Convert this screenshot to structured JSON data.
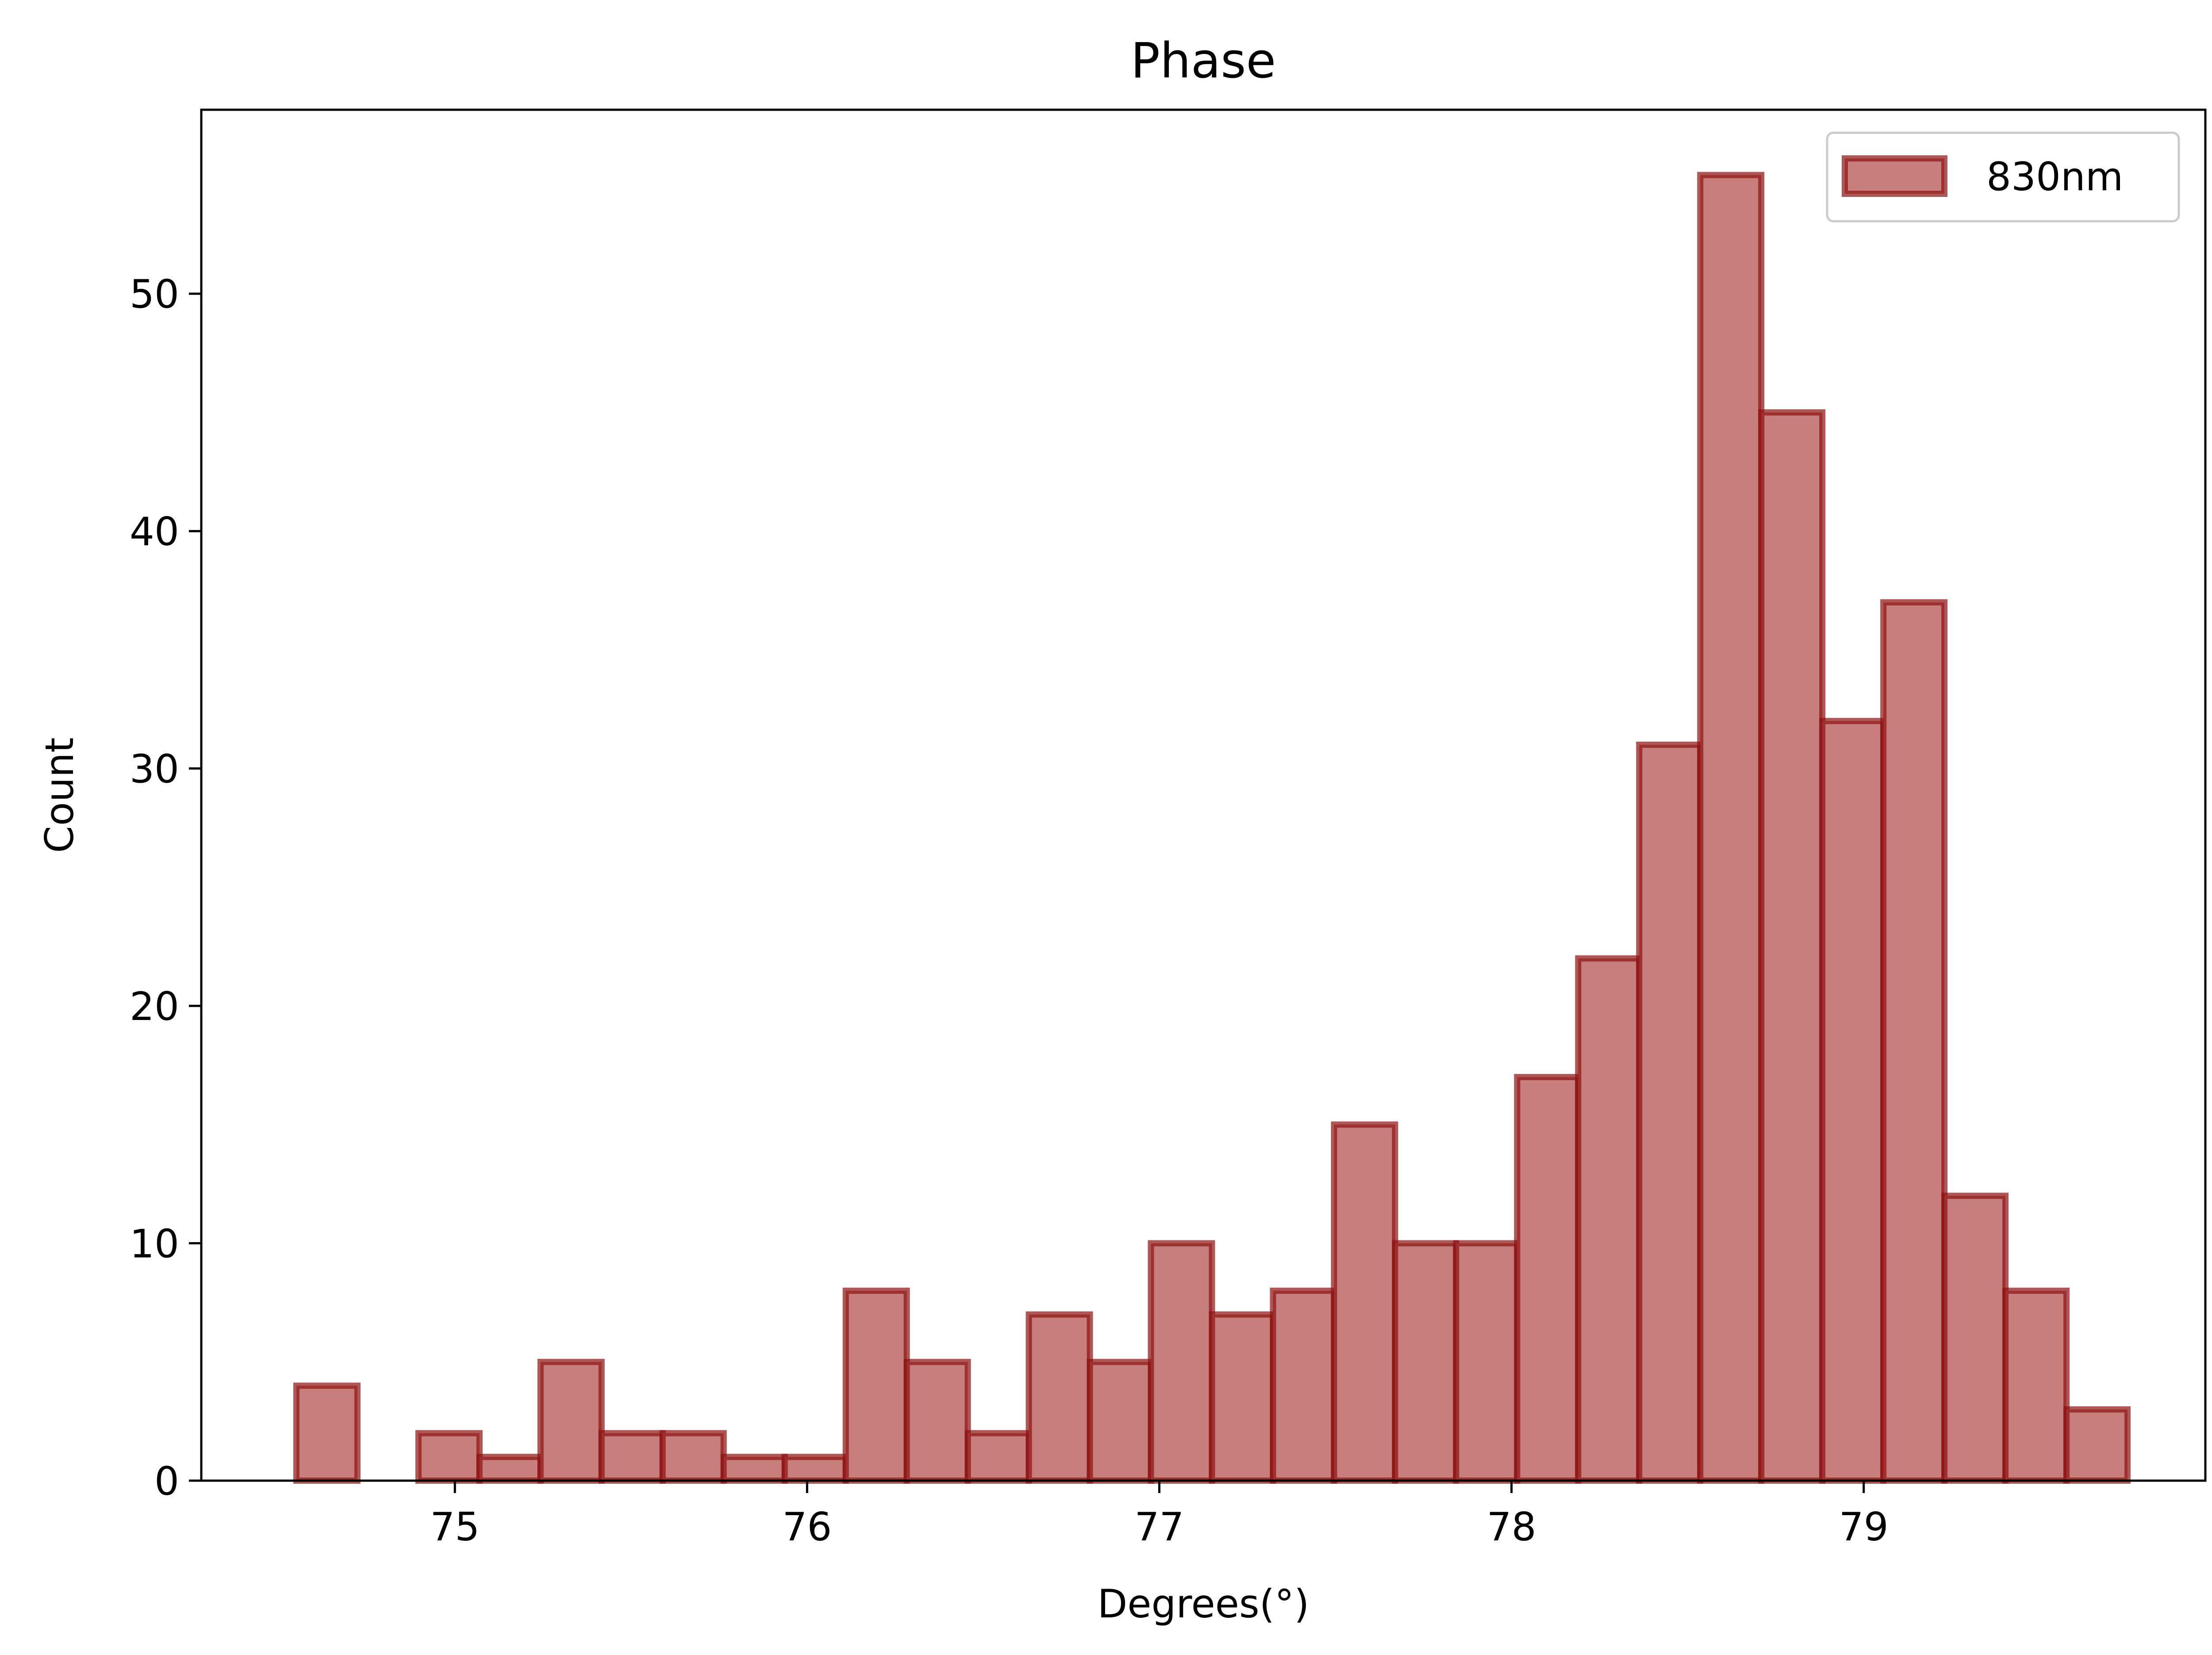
{
  "chart_data": {
    "type": "bar",
    "title": "Phase",
    "xlabel": "Degrees(°)",
    "ylabel": "Count",
    "xlim": [
      74.28,
      79.97
    ],
    "ylim": [
      0,
      57.75
    ],
    "x_ticks": [
      75,
      76,
      77,
      78,
      79
    ],
    "y_ticks": [
      0,
      10,
      20,
      30,
      40,
      50
    ],
    "grid": false,
    "legend": {
      "position": "top-right"
    },
    "bin_start": 74.55,
    "bin_width": 0.1733,
    "series": [
      {
        "name": "830nm",
        "fill": "#c97e7e",
        "edge": "#8b1010",
        "values": [
          4,
          0,
          2,
          1,
          5,
          2,
          2,
          1,
          1,
          8,
          5,
          2,
          7,
          5,
          10,
          7,
          8,
          15,
          10,
          10,
          17,
          22,
          31,
          55,
          45,
          32,
          37,
          12,
          8,
          3
        ]
      }
    ]
  }
}
